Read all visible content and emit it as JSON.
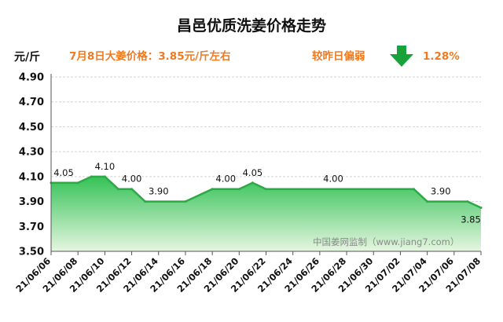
{
  "colors": {
    "accent_text": "#ee7a22",
    "line": "#2fa946",
    "fill_top": "#34c257",
    "fill_bottom": "#e6f6e1",
    "arrow": "#19a23a",
    "grid": "#d2d2d2"
  },
  "header": {
    "title": "昌邑优质洗姜价格走势",
    "unit": "元/斤",
    "price_note": "7月8日大姜价格：3.85元/斤左右",
    "compare_label": "较昨日偏弱",
    "change_pct": "1.28%",
    "change_icon": "arrow-down-icon"
  },
  "watermark": "中国姜网监制（www.jiang7.com）",
  "chart_data": {
    "type": "area",
    "title": "昌邑优质洗姜价格走势",
    "ylabel": "元/斤",
    "ylim": [
      3.5,
      4.9
    ],
    "grid": true,
    "y_ticks": [
      "3.50",
      "3.70",
      "3.90",
      "4.10",
      "4.30",
      "4.50",
      "4.70",
      "4.90"
    ],
    "x_tick_labels": [
      "21/06/06",
      "21/06/08",
      "21/06/10",
      "21/06/12",
      "21/06/14",
      "21/06/16",
      "21/06/18",
      "21/06/20",
      "21/06/22",
      "21/06/24",
      "21/06/26",
      "21/06/28",
      "21/06/30",
      "21/07/02",
      "21/07/04",
      "21/07/06",
      "21/07/08"
    ],
    "x_range": [
      "2021-06-06",
      "2021-07-08"
    ],
    "series": [
      {
        "points": [
          {
            "x": "2021-06-06",
            "y": 4.05
          },
          {
            "x": "2021-06-08",
            "y": 4.05
          },
          {
            "x": "2021-06-09",
            "y": 4.1
          },
          {
            "x": "2021-06-10",
            "y": 4.1
          },
          {
            "x": "2021-06-11",
            "y": 4.0
          },
          {
            "x": "2021-06-12",
            "y": 4.0
          },
          {
            "x": "2021-06-13",
            "y": 3.9
          },
          {
            "x": "2021-06-16",
            "y": 3.9
          },
          {
            "x": "2021-06-18",
            "y": 4.0
          },
          {
            "x": "2021-06-20",
            "y": 4.0
          },
          {
            "x": "2021-06-21",
            "y": 4.05
          },
          {
            "x": "2021-06-22",
            "y": 4.0
          },
          {
            "x": "2021-07-03",
            "y": 4.0
          },
          {
            "x": "2021-07-04",
            "y": 3.9
          },
          {
            "x": "2021-07-07",
            "y": 3.9
          },
          {
            "x": "2021-07-08",
            "y": 3.85
          }
        ]
      }
    ],
    "data_labels": [
      {
        "x": "2021-06-06",
        "y": 4.05,
        "text": "4.05"
      },
      {
        "x": "2021-06-10",
        "y": 4.1,
        "text": "4.10"
      },
      {
        "x": "2021-06-12",
        "y": 4.0,
        "text": "4.00"
      },
      {
        "x": "2021-06-14",
        "y": 3.9,
        "text": "3.90"
      },
      {
        "x": "2021-06-19",
        "y": 4.0,
        "text": "4.00"
      },
      {
        "x": "2021-06-21",
        "y": 4.05,
        "text": "4.05"
      },
      {
        "x": "2021-06-27",
        "y": 4.0,
        "text": "4.00"
      },
      {
        "x": "2021-07-05",
        "y": 3.9,
        "text": "3.90"
      },
      {
        "x": "2021-07-08",
        "y": 3.85,
        "text": "3.85"
      }
    ]
  }
}
